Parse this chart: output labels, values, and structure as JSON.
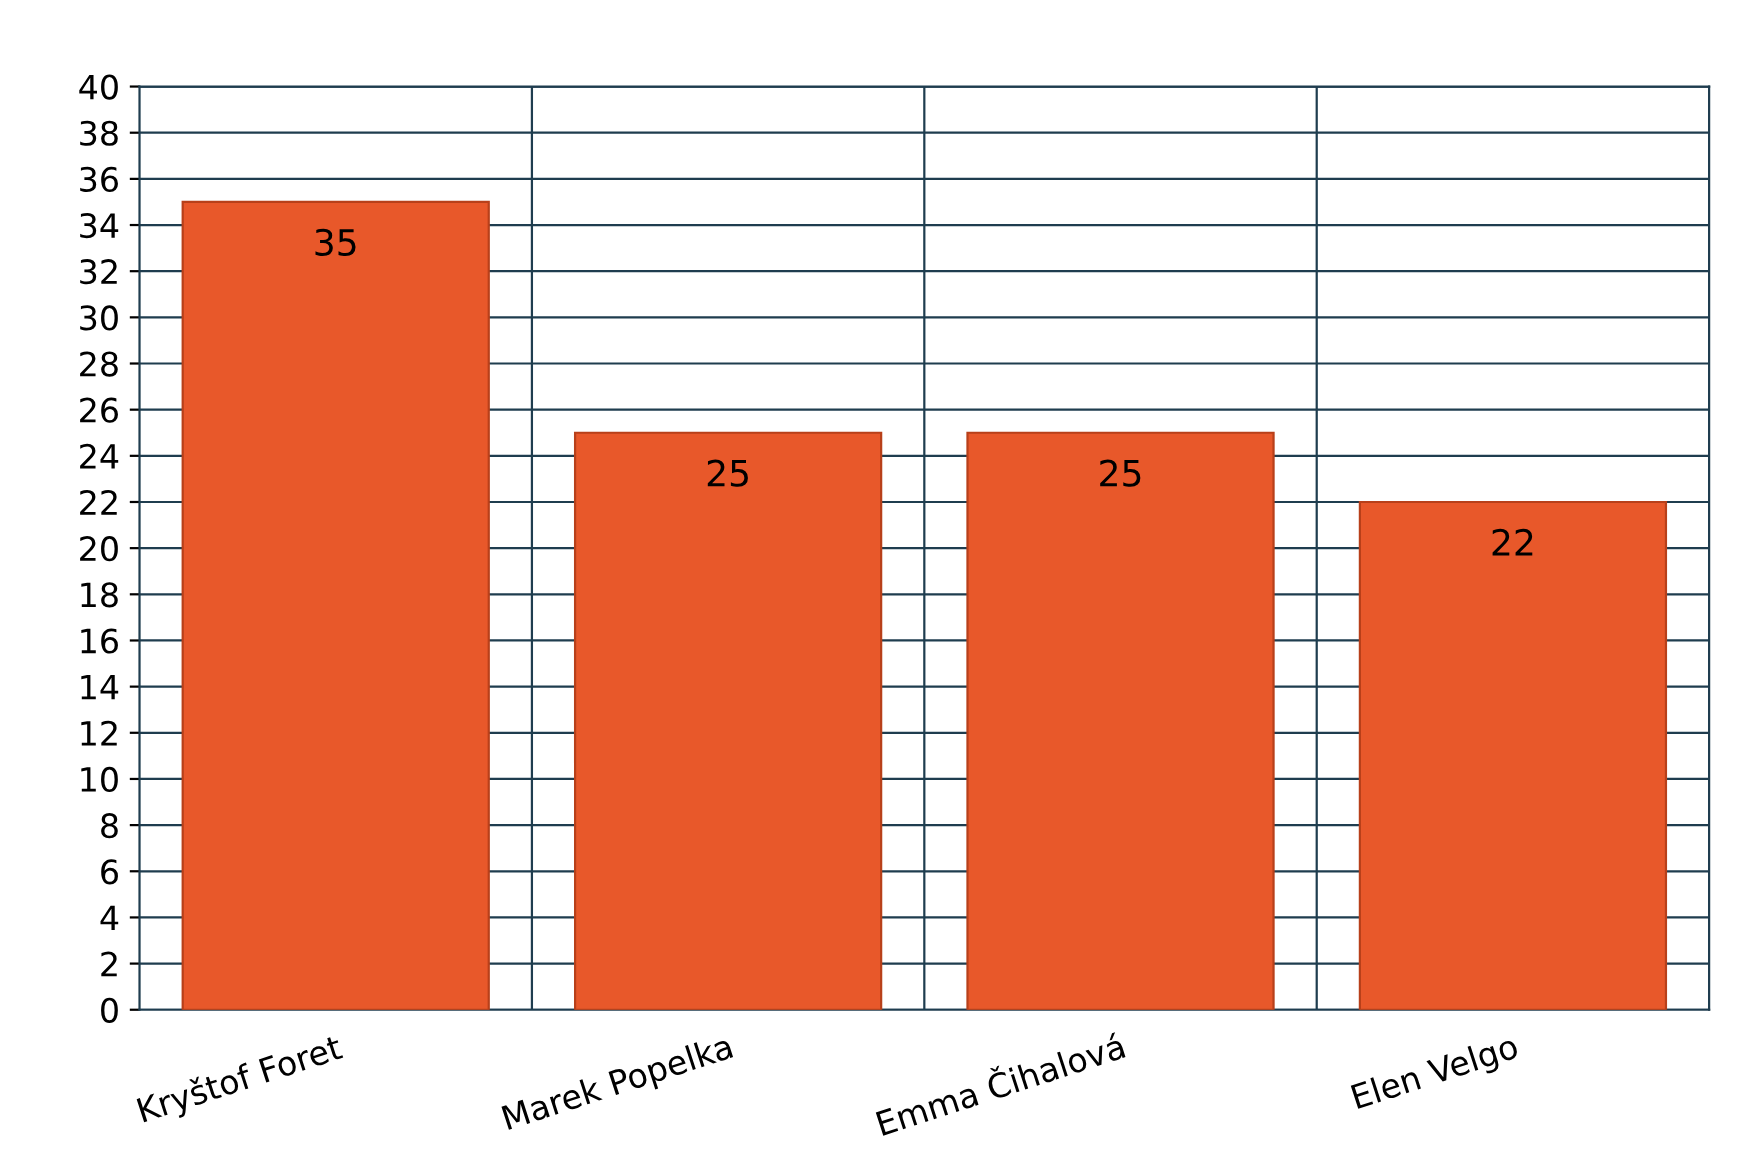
{
  "chart_data": {
    "type": "bar",
    "categories": [
      "Kryštof Foret",
      "Marek Popelka",
      "Emma Čihalová",
      "Elen Velgo"
    ],
    "values": [
      35,
      25,
      25,
      22
    ],
    "color": "#e8582a",
    "ylim": [
      0,
      40
    ],
    "yticks": [
      0,
      2,
      4,
      6,
      8,
      10,
      12,
      14,
      16,
      18,
      20,
      22,
      24,
      26,
      28,
      30,
      32,
      34,
      36,
      38,
      40
    ],
    "grid": true,
    "data_labels": true
  }
}
